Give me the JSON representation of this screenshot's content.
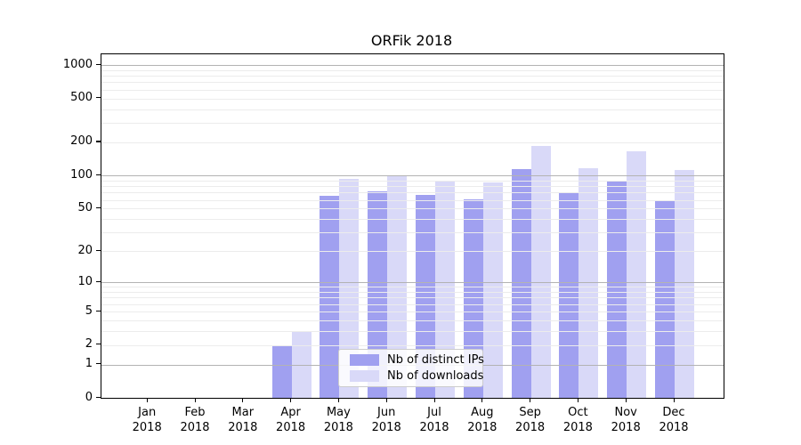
{
  "chart_data": {
    "type": "bar",
    "title": "ORFik 2018",
    "year": "2018",
    "categories": [
      "Jan",
      "Feb",
      "Mar",
      "Apr",
      "May",
      "Jun",
      "Jul",
      "Aug",
      "Sep",
      "Oct",
      "Nov",
      "Dec"
    ],
    "series": [
      {
        "name": "Nb of distinct IPs",
        "color": "#a0a0f0",
        "values": [
          0,
          0,
          0,
          2,
          65,
          72,
          67,
          61,
          115,
          71,
          90,
          59
        ]
      },
      {
        "name": "Nb of downloads",
        "color": "#d9d9f8",
        "values": [
          0,
          0,
          0,
          3,
          93,
          99,
          88,
          87,
          185,
          117,
          166,
          112
        ]
      }
    ],
    "y_axis": {
      "scale": "log1p",
      "ylim": [
        0,
        1250
      ],
      "tick_values": [
        1000,
        500,
        200,
        100,
        50,
        20,
        10,
        5,
        2,
        1,
        0
      ],
      "tick_labels": [
        "1000",
        "500",
        "200",
        "100",
        "50",
        "20",
        "10",
        "5",
        "2",
        "1",
        "0"
      ],
      "major_gridlines": [
        1,
        10,
        100,
        1000
      ],
      "minor_gridlines": [
        2,
        3,
        4,
        5,
        6,
        7,
        8,
        9,
        20,
        30,
        40,
        50,
        60,
        70,
        80,
        90,
        200,
        300,
        400,
        500,
        600,
        700,
        800,
        900
      ]
    },
    "grid": true,
    "grid_above_bars": true,
    "legend_position": "inset lower center",
    "colors": {
      "major_grid": "#b3b3b3",
      "minor_grid": "#ececec",
      "spine": "#000000",
      "background": "#ffffff"
    }
  }
}
